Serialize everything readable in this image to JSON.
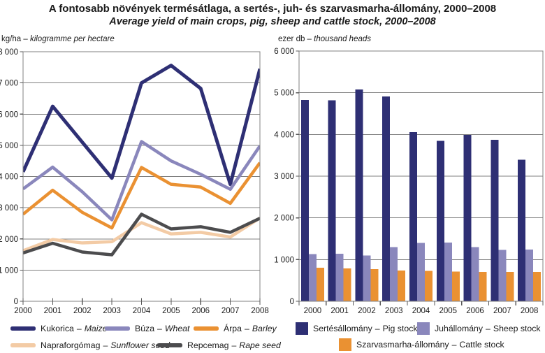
{
  "title": "A fontosabb növények termésátlaga, a sertés-, juh- és szarvasmarha-állomány, 2000–2008",
  "subtitle": "Average yield of main crops, pig, sheep and cattle stock, 2000–2008",
  "legend_sep": "–",
  "colors": {
    "navy": "#2e2f74",
    "purple": "#8a87bc",
    "orange": "#ea9132",
    "peach": "#f3cba5",
    "dark_gray": "#4c4c4e",
    "gridline": "#808080",
    "axis_tick": "#595959",
    "text": "#1a1a1a"
  },
  "chart_data": [
    {
      "type": "line",
      "unit_prefix": "kg/ha –",
      "unit_italic": "kilogramme per hectare",
      "categories": [
        "2000",
        "2001",
        "2002",
        "2003",
        "2004",
        "2005",
        "2006",
        "2007",
        "2008"
      ],
      "ylim": [
        0,
        8000
      ],
      "ytick_step": 1000,
      "grid": true,
      "legend_position": "bottom",
      "series": [
        {
          "label_hu": "Kukorica",
          "label_en": "Maize",
          "color": "#2e2f74",
          "values": [
            4150,
            6250,
            5100,
            3950,
            7000,
            7560,
            6820,
            3750,
            7450
          ]
        },
        {
          "label_hu": "Búza",
          "label_en": "Wheat",
          "color": "#8a87bc",
          "values": [
            3600,
            4300,
            3510,
            2610,
            5120,
            4500,
            4070,
            3590,
            4980
          ]
        },
        {
          "label_hu": "Árpa",
          "label_en": "Barley",
          "color": "#ea9132",
          "values": [
            2790,
            3560,
            2850,
            2350,
            4290,
            3750,
            3660,
            3140,
            4440
          ]
        },
        {
          "label_hu": "Napraforgómag",
          "label_en": "Sunflower seed",
          "color": "#f3cba5",
          "values": [
            1620,
            1980,
            1870,
            1910,
            2520,
            2160,
            2210,
            2060,
            2670
          ]
        },
        {
          "label_hu": "Repcemag",
          "label_en": "Rape seed",
          "color": "#4c4c4e",
          "values": [
            1550,
            1860,
            1580,
            1490,
            2790,
            2320,
            2390,
            2210,
            2660
          ]
        }
      ]
    },
    {
      "type": "bar",
      "unit_prefix": "ezer db –",
      "unit_italic": "thousand heads",
      "categories": [
        "2000",
        "2001",
        "2002",
        "2003",
        "2004",
        "2005",
        "2006",
        "2007",
        "2008"
      ],
      "ylim": [
        0,
        6000
      ],
      "ytick_step": 1000,
      "grid": true,
      "legend_position": "bottom",
      "series": [
        {
          "label_hu": "Sertésállomány",
          "label_en": "Pig stock",
          "color": "#2e2f74",
          "values": [
            4830,
            4820,
            5080,
            4910,
            4060,
            3850,
            3990,
            3870,
            3390
          ]
        },
        {
          "label_hu": "Juhállomány",
          "label_en": "Sheep stock",
          "color": "#8a87bc",
          "values": [
            1130,
            1140,
            1100,
            1300,
            1400,
            1410,
            1300,
            1230,
            1240
          ]
        },
        {
          "label_hu": "Szarvasmarha-állomány",
          "label_en": "Cattle stock",
          "color": "#ea9132",
          "values": [
            805,
            785,
            770,
            740,
            725,
            710,
            700,
            705,
            700
          ]
        }
      ]
    }
  ]
}
